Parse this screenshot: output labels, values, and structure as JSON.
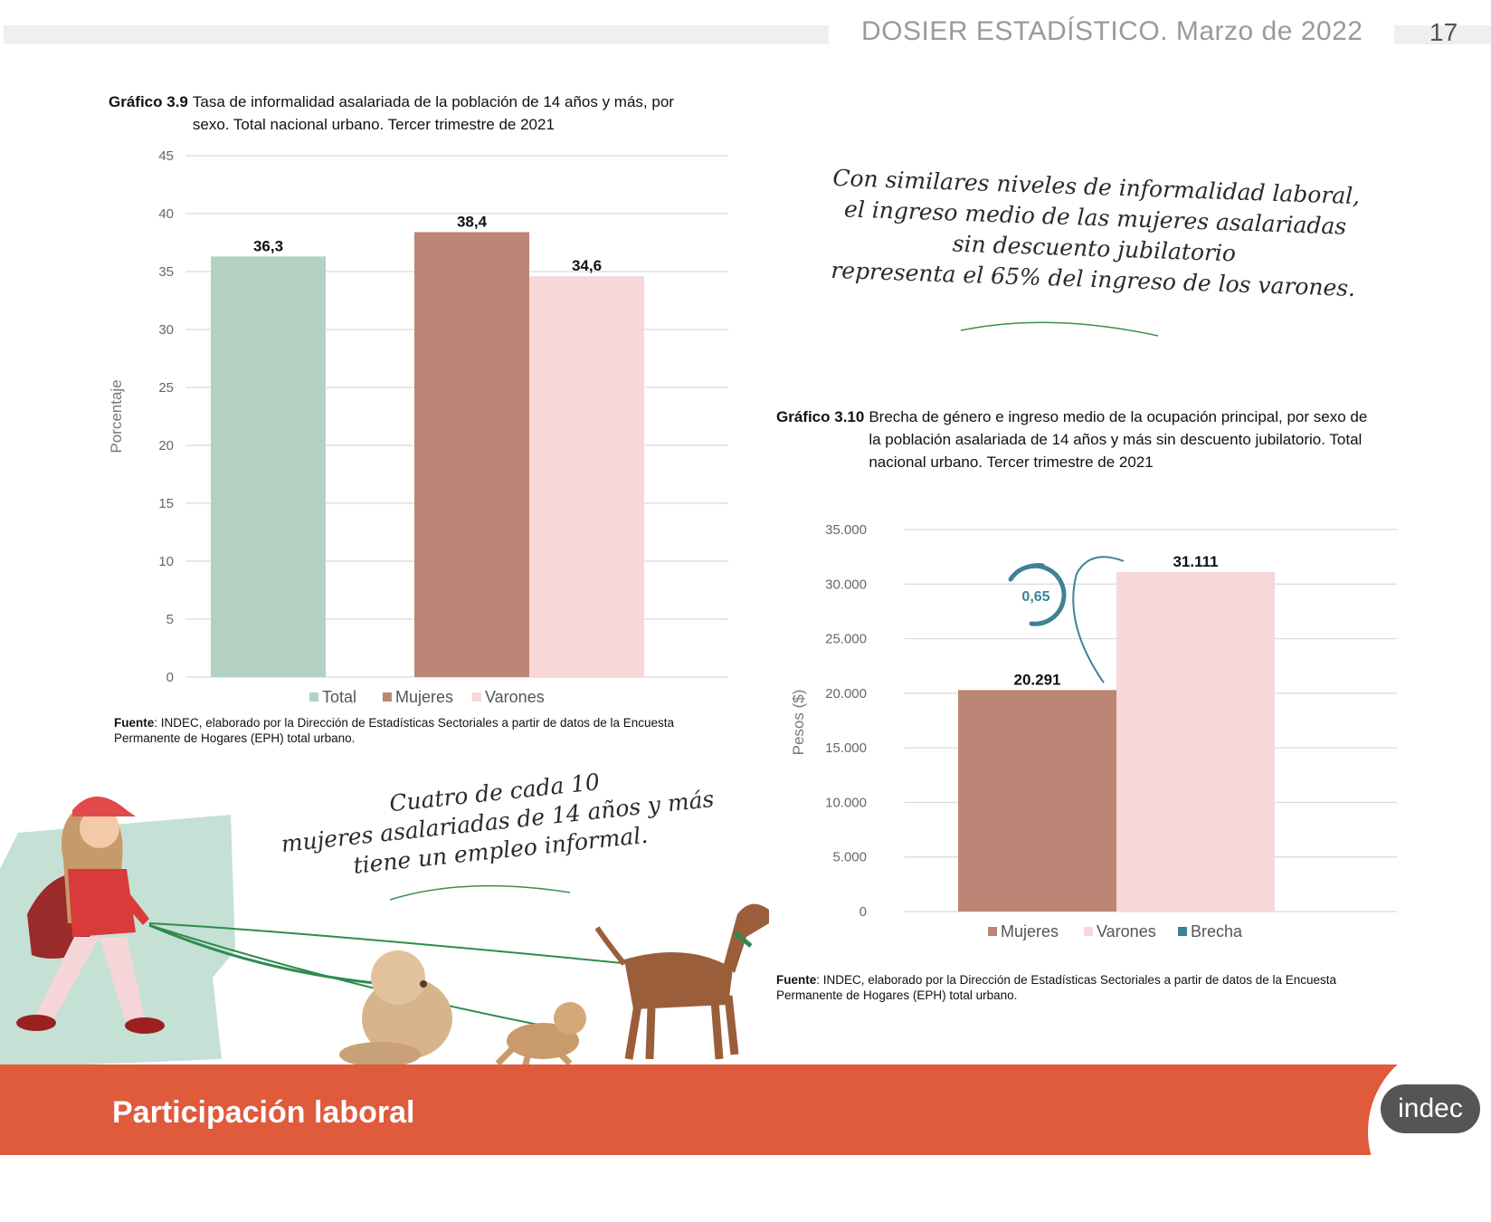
{
  "header": {
    "title": "DOSIER ESTADÍSTICO. Marzo de 2022",
    "page_number": "17"
  },
  "chart1": {
    "label": "Gráfico 3.9",
    "title": "Tasa de informalidad asalariada de la población de 14 años y más, por sexo. Total nacional urbano. Tercer trimestre de 2021",
    "source_label": "Fuente",
    "source_text": ": INDEC, elaborado por la Dirección de Estadísticas Sectoriales a partir de datos de la Encuesta Permanente de Hogares (EPH) total urbano."
  },
  "chart2": {
    "label": "Gráfico 3.10",
    "title": "Brecha de género e ingreso medio de la ocupación principal, por sexo de la población asalariada de 14 años y más sin descuento jubilatorio. Total nacional urbano. Tercer trimestre de 2021",
    "source_label": "Fuente",
    "source_text": ": INDEC, elaborado por la Dirección de Estadísticas Sectoriales a partir de datos de la Encuesta Permanente de Hogares (EPH) total urbano."
  },
  "callouts": {
    "top_right": [
      "Con similares niveles de informalidad laboral,",
      "el ingreso medio de las mujeres asalariadas",
      "sin descuento jubilatorio",
      "representa el 65% del ingreso de los varones."
    ],
    "bottom_left": [
      "Cuatro de cada 10",
      "mujeres asalariadas de 14 años y más",
      "tiene un empleo informal."
    ]
  },
  "footer": {
    "section": "Participación laboral",
    "logo": "indec"
  },
  "colors": {
    "total": "#b3d2c4",
    "mujeres": "#bc8575",
    "varones": "#f8d7d8",
    "brecha": "#3f8197",
    "footer": "#e05a3c"
  },
  "chart_data": [
    {
      "type": "bar",
      "categories": [
        "Total",
        "Mujeres",
        "Varones"
      ],
      "values": [
        36.3,
        38.4,
        34.6
      ],
      "value_labels": [
        "36,3",
        "38,4",
        "34,6"
      ],
      "ylabel": "Porcentaje",
      "ylim": [
        0,
        45
      ],
      "yticks": [
        0,
        5,
        10,
        15,
        20,
        25,
        30,
        35,
        40,
        45
      ],
      "ytick_labels": [
        "0",
        "5",
        "10",
        "15",
        "20",
        "25",
        "30",
        "35",
        "40",
        "45"
      ],
      "legend": [
        "Total",
        "Mujeres",
        "Varones"
      ],
      "legend_position": "bottom",
      "grid": true
    },
    {
      "type": "bar",
      "categories": [
        "Mujeres",
        "Varones"
      ],
      "values": [
        20291,
        31111
      ],
      "value_labels": [
        "20.291",
        "31.111"
      ],
      "ylabel": "Pesos ($)",
      "ylim": [
        0,
        35000
      ],
      "yticks": [
        0,
        5000,
        10000,
        15000,
        20000,
        25000,
        30000,
        35000
      ],
      "ytick_labels": [
        "0",
        "5.000",
        "10.000",
        "15.000",
        "20.000",
        "25.000",
        "30.000",
        "35.000"
      ],
      "brecha": 0.65,
      "brecha_label": "0,65",
      "legend": [
        "Mujeres",
        "Varones",
        "Brecha"
      ],
      "legend_position": "bottom",
      "grid": true
    }
  ]
}
